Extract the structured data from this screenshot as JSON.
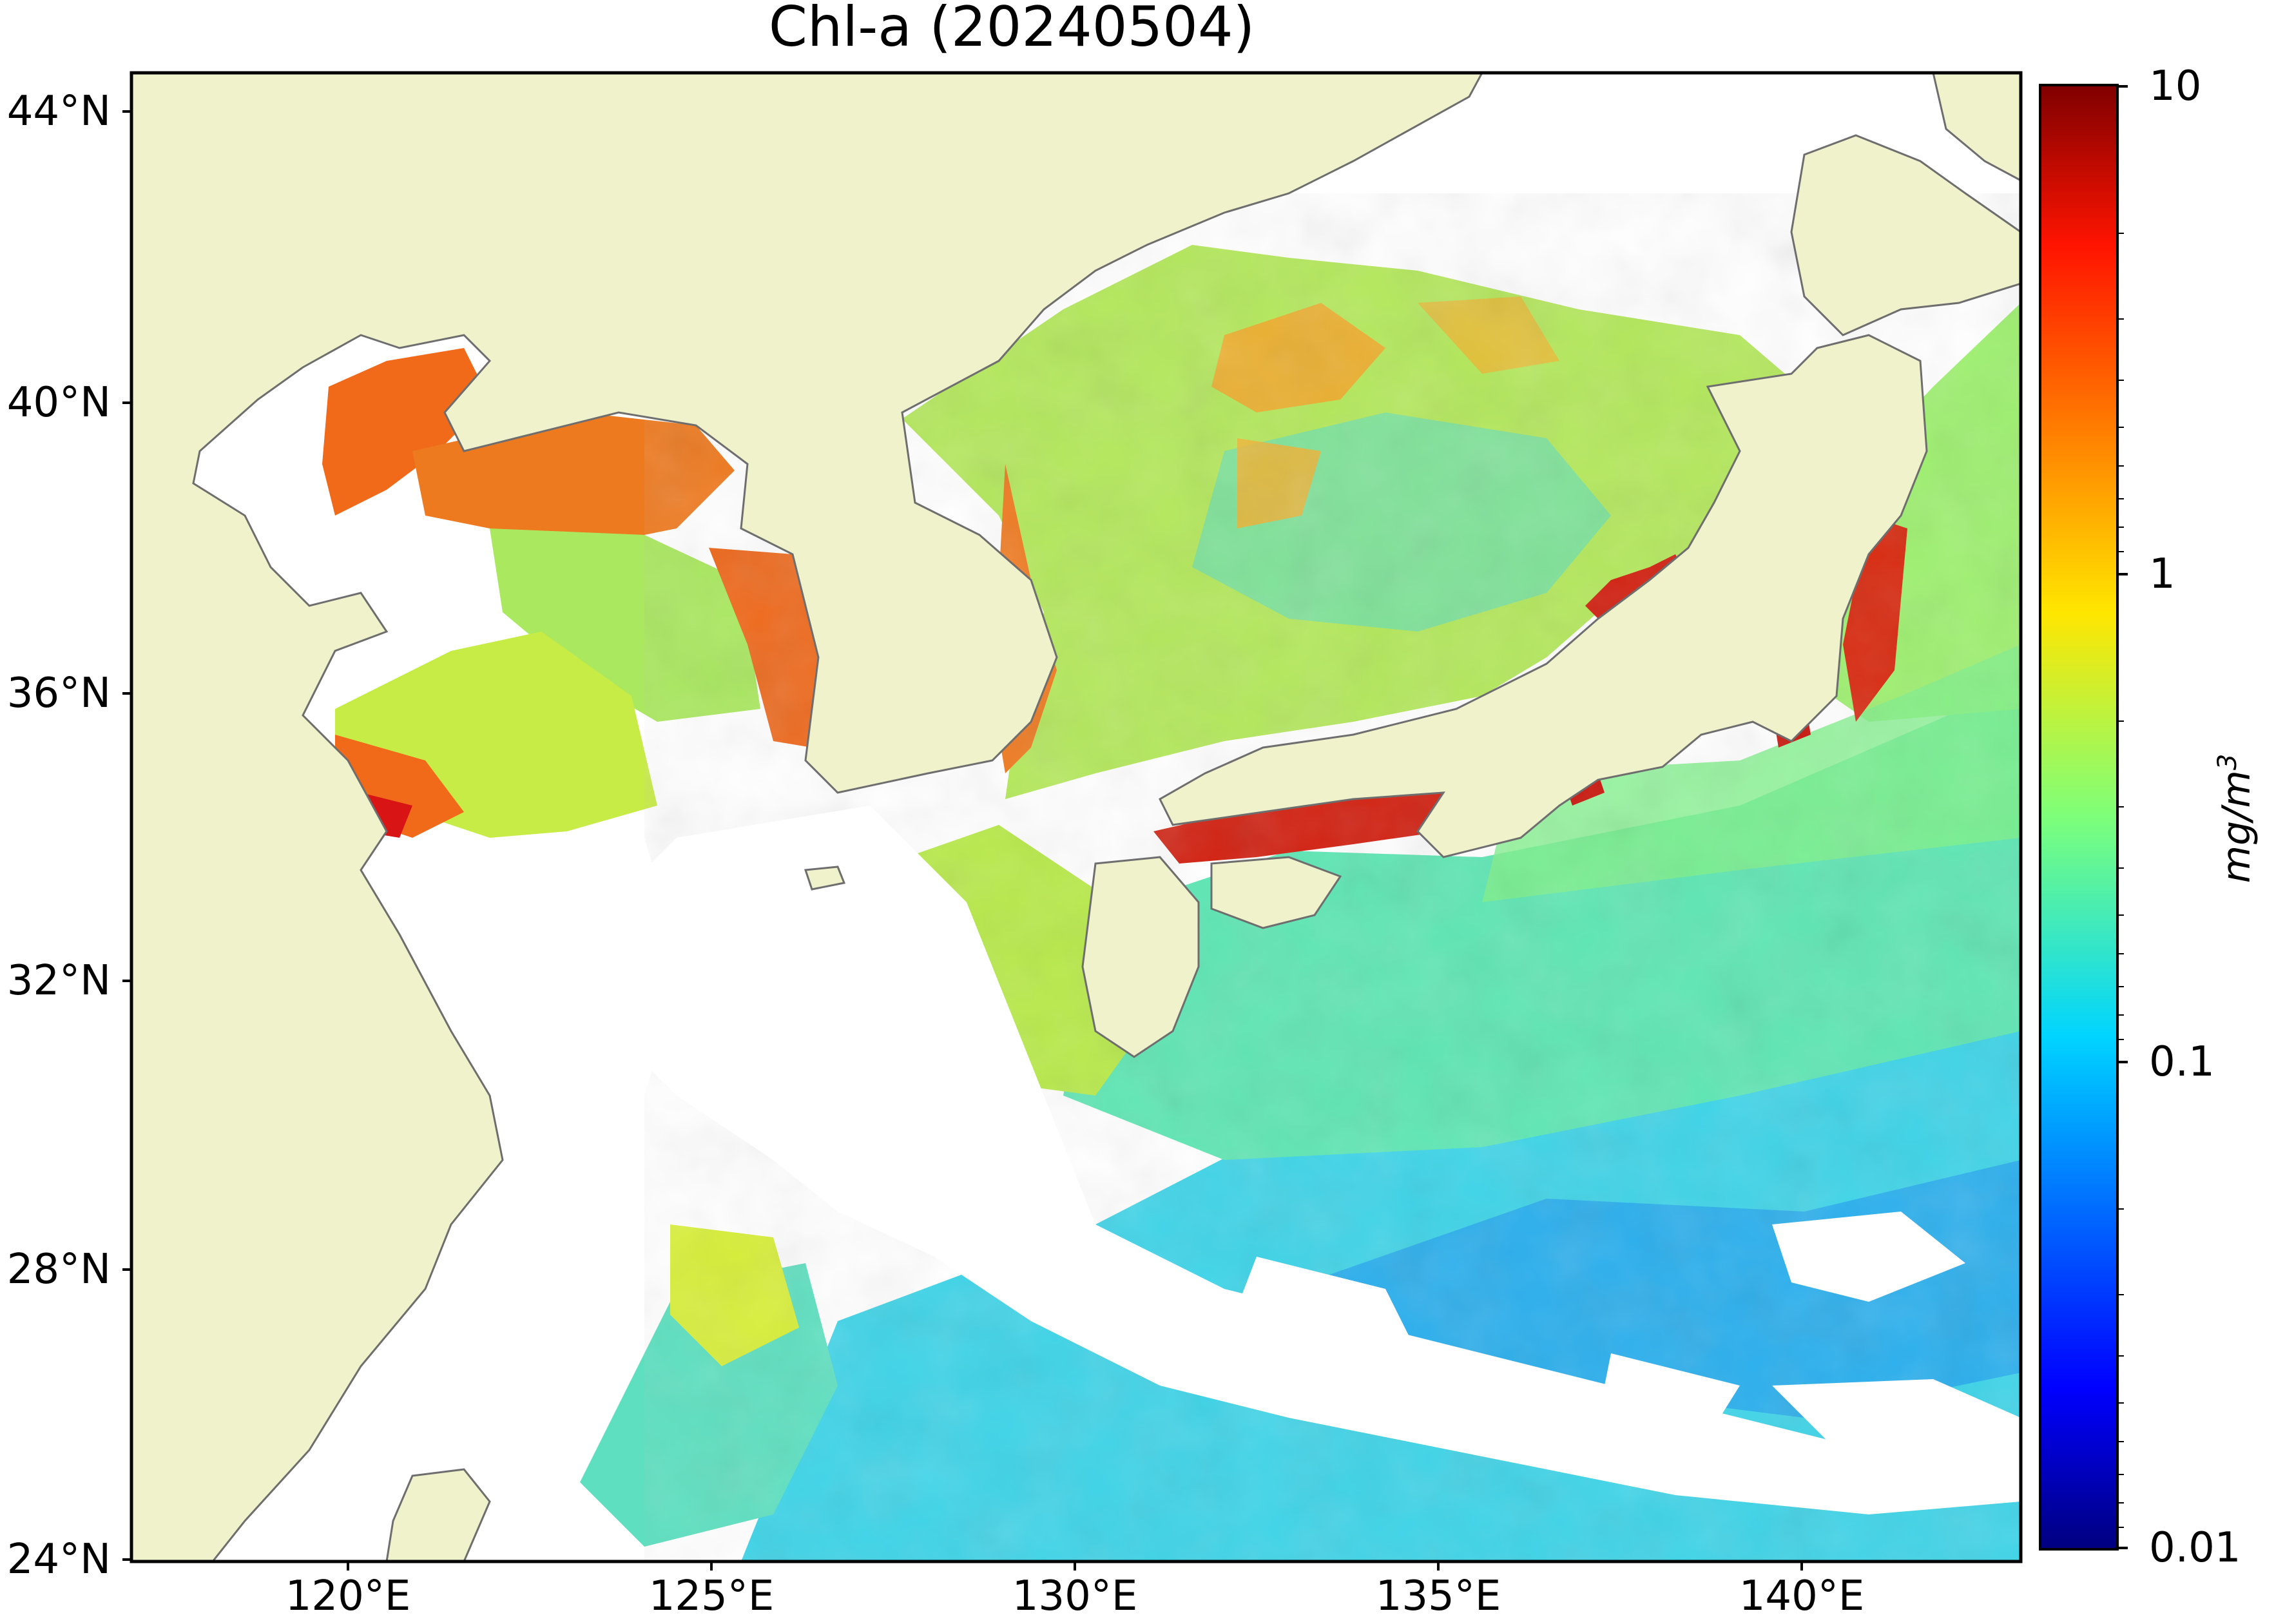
{
  "title": "Chl-a (20240504)",
  "map": {
    "extent": {
      "lon_min": 117,
      "lon_max": 143,
      "lat_min": 24,
      "lat_max": 44.5
    },
    "lat_ticks": [
      "44°N",
      "40°N",
      "36°N",
      "32°N",
      "28°N",
      "24°N"
    ],
    "lon_ticks": [
      "120°E",
      "125°E",
      "130°E",
      "135°E",
      "140°E"
    ],
    "colors": {
      "land": "#f0f2cc",
      "no_data": "#ffffff",
      "coastline": "#6e6e6e"
    }
  },
  "colorbar": {
    "scale": "log",
    "ticks": [
      "10",
      "1",
      "0.1",
      "0.01"
    ],
    "unit_base": "mg/m",
    "unit_exp": "3",
    "colormap": "jet"
  }
}
